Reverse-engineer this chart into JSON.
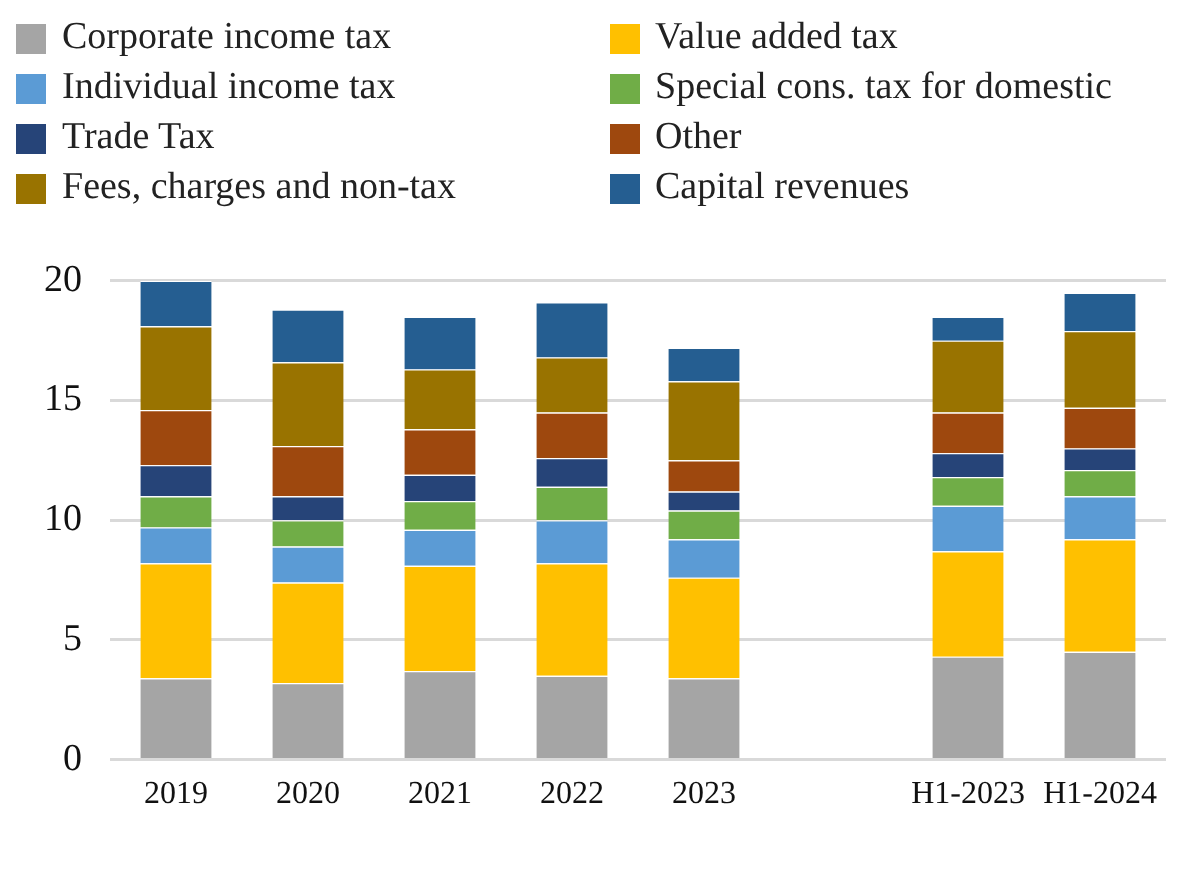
{
  "chart_data": {
    "type": "bar",
    "stacked": true,
    "categories": [
      "2019",
      "2020",
      "2021",
      "2022",
      "2023",
      null,
      "H1-2023",
      "H1-2024"
    ],
    "series": [
      {
        "name": "Corporate income tax",
        "color": "#a5a5a5",
        "values": [
          3.4,
          3.2,
          3.7,
          3.5,
          3.4,
          null,
          4.3,
          4.5
        ]
      },
      {
        "name": "Value added tax",
        "color": "#ffc000",
        "values": [
          4.8,
          4.2,
          4.4,
          4.7,
          4.2,
          null,
          4.4,
          4.7
        ]
      },
      {
        "name": "Individual income tax",
        "color": "#5b9bd5",
        "values": [
          1.5,
          1.5,
          1.5,
          1.8,
          1.6,
          null,
          1.9,
          1.8
        ]
      },
      {
        "name": "Special cons. tax for domestic",
        "color": "#70ad47",
        "values": [
          1.3,
          1.1,
          1.2,
          1.4,
          1.2,
          null,
          1.2,
          1.1
        ]
      },
      {
        "name": "Trade Tax",
        "color": "#264478",
        "values": [
          1.3,
          1.0,
          1.1,
          1.2,
          0.8,
          null,
          1.0,
          0.9
        ]
      },
      {
        "name": "Other",
        "color": "#9e480e",
        "values": [
          2.3,
          2.1,
          1.9,
          1.9,
          1.3,
          null,
          1.7,
          1.7
        ]
      },
      {
        "name": "Fees, charges and non-tax",
        "color": "#997300",
        "values": [
          3.5,
          3.5,
          2.5,
          2.3,
          3.3,
          null,
          3.0,
          3.2
        ]
      },
      {
        "name": "Capital revenues",
        "color": "#255e91",
        "values": [
          1.9,
          2.2,
          2.2,
          2.3,
          1.4,
          null,
          1.0,
          1.6
        ]
      }
    ],
    "ylim": [
      0,
      20
    ],
    "yticks": [
      0,
      5,
      10,
      15,
      20
    ],
    "grid": "y",
    "legend": "top"
  }
}
